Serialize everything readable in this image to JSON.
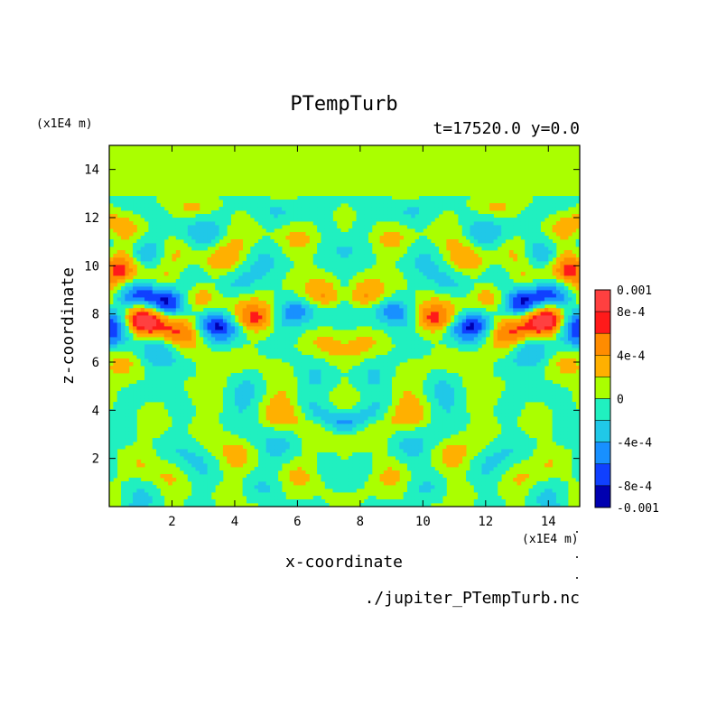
{
  "chart_data": {
    "type": "heatmap",
    "title": "PTempTurb",
    "subtitle": "t=17520.0 y=0.0",
    "xlabel": "x-coordinate",
    "ylabel": "z-coordinate",
    "x_unit": "(x1E4 m)",
    "y_unit": "(x1E4 m)",
    "footer": "./jupiter_PTempTurb.nc",
    "xlim": [
      0,
      15
    ],
    "ylim": [
      0,
      15
    ],
    "x_ticks": [
      2,
      4,
      6,
      8,
      10,
      12,
      14
    ],
    "y_ticks": [
      2,
      4,
      6,
      8,
      10,
      12,
      14
    ],
    "x_tick_labels": [
      "2",
      "4",
      "6",
      "8",
      "10",
      "12",
      "14"
    ],
    "y_tick_labels": [
      "2",
      "4",
      "6",
      "8",
      "10",
      "12",
      "14"
    ],
    "colorbar": {
      "min": -0.001,
      "max": 0.001,
      "labels": [
        {
          "value": 0.001,
          "text": "0.001"
        },
        {
          "value": 0.0008,
          "text": "8e-4"
        },
        {
          "value": 0.0004,
          "text": "4e-4"
        },
        {
          "value": 0,
          "text": "0"
        },
        {
          "value": -0.0004,
          "text": "-4e-4"
        },
        {
          "value": -0.0008,
          "text": "-8e-4"
        },
        {
          "value": -0.001,
          "text": "-0.001"
        }
      ],
      "levels": [
        {
          "from": 0.0008,
          "to": 0.001,
          "color": "#ff4040"
        },
        {
          "from": 0.0006,
          "to": 0.0008,
          "color": "#ff1a1a"
        },
        {
          "from": 0.0004,
          "to": 0.0006,
          "color": "#ff8c00"
        },
        {
          "from": 0.0002,
          "to": 0.0004,
          "color": "#ffb000"
        },
        {
          "from": 0.0,
          "to": 0.0002,
          "color": "#aaff00"
        },
        {
          "from": -0.0002,
          "to": 0.0,
          "color": "#20f0c0"
        },
        {
          "from": -0.0004,
          "to": -0.0002,
          "color": "#20c8e8"
        },
        {
          "from": -0.0006,
          "to": -0.0004,
          "color": "#1890ff"
        },
        {
          "from": -0.0008,
          "to": -0.0006,
          "color": "#1040ff"
        },
        {
          "from": -0.001,
          "to": -0.0008,
          "color": "#0000b0"
        }
      ]
    },
    "background_color": "#aaff00"
  }
}
